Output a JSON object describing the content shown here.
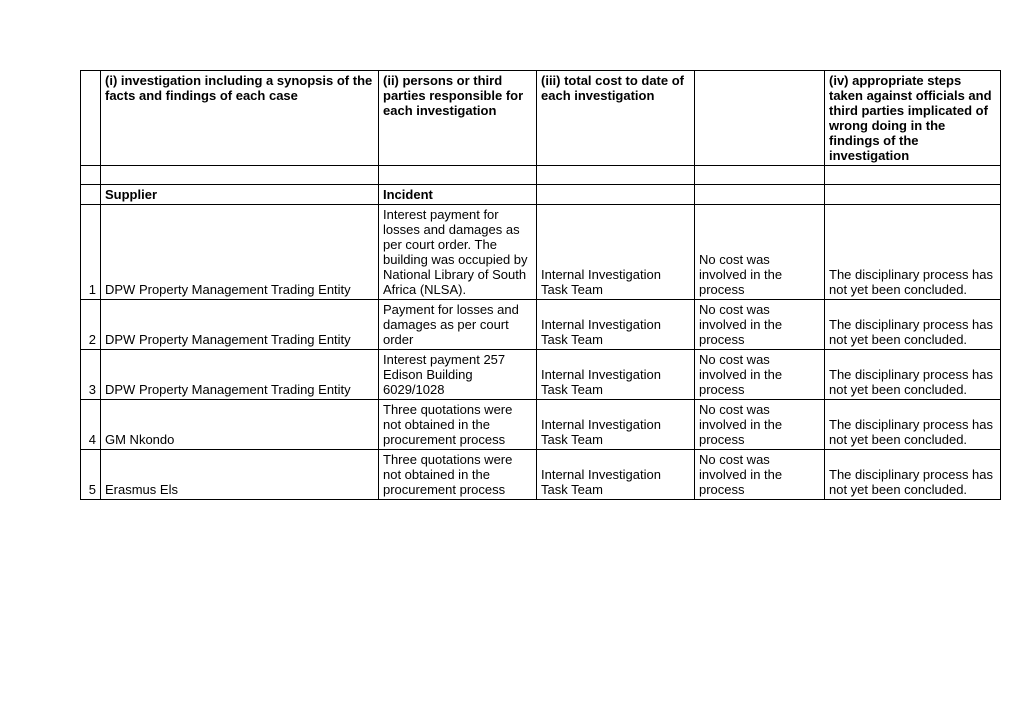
{
  "headers": {
    "col1": "(i) investigation including a synopsis of the facts and findings of each case",
    "col2": "(ii) persons or third parties responsible for each investigation",
    "col3": "(iii) total cost to date of each investigation",
    "col4": "",
    "col5": "(iv) appropriate steps taken against officials and third parties implicated of wrong doing in the findings of the investigation"
  },
  "subheaders": {
    "supplier": "Supplier",
    "incident": "Incident"
  },
  "rows": [
    {
      "num": "1",
      "supplier": "DPW Property Management Trading Entity",
      "incident": " Interest payment for losses and damages as per court order. The building was occupied by National Library of South Africa (NLSA).",
      "investigation": " Internal Investigation Task Team",
      "cost": "No cost was involved in the process",
      "steps": "The disciplinary process has not yet been concluded."
    },
    {
      "num": "2",
      "supplier": "DPW Property Management Trading Entity",
      "incident": "Payment for losses and damages as per court order",
      "investigation": " Internal Investigation Task Team",
      "cost": "No cost was involved in the process",
      "steps": "The disciplinary process has not yet been concluded."
    },
    {
      "num": "3",
      "supplier": "DPW Property Management Trading Entity",
      "incident": "Interest payment 257 Edison Building 6029/1028",
      "investigation": " Internal Investigation Task Team",
      "cost": "No cost was involved in the process",
      "steps": "The disciplinary process has not yet been concluded."
    },
    {
      "num": "4",
      "supplier": "GM Nkondo",
      "incident": "Three quotations were not obtained in the procurement process",
      "investigation": " Internal Investigation Task Team",
      "cost": "No cost was involved in the process",
      "steps": "The disciplinary process has not yet been concluded."
    },
    {
      "num": "5",
      "supplier": "Erasmus Els",
      "incident": "Three quotations were not obtained in the procurement process",
      "investigation": " Internal Investigation Task Team",
      "cost": "No cost was involved in the process",
      "steps": "The disciplinary process has not yet been concluded."
    }
  ]
}
